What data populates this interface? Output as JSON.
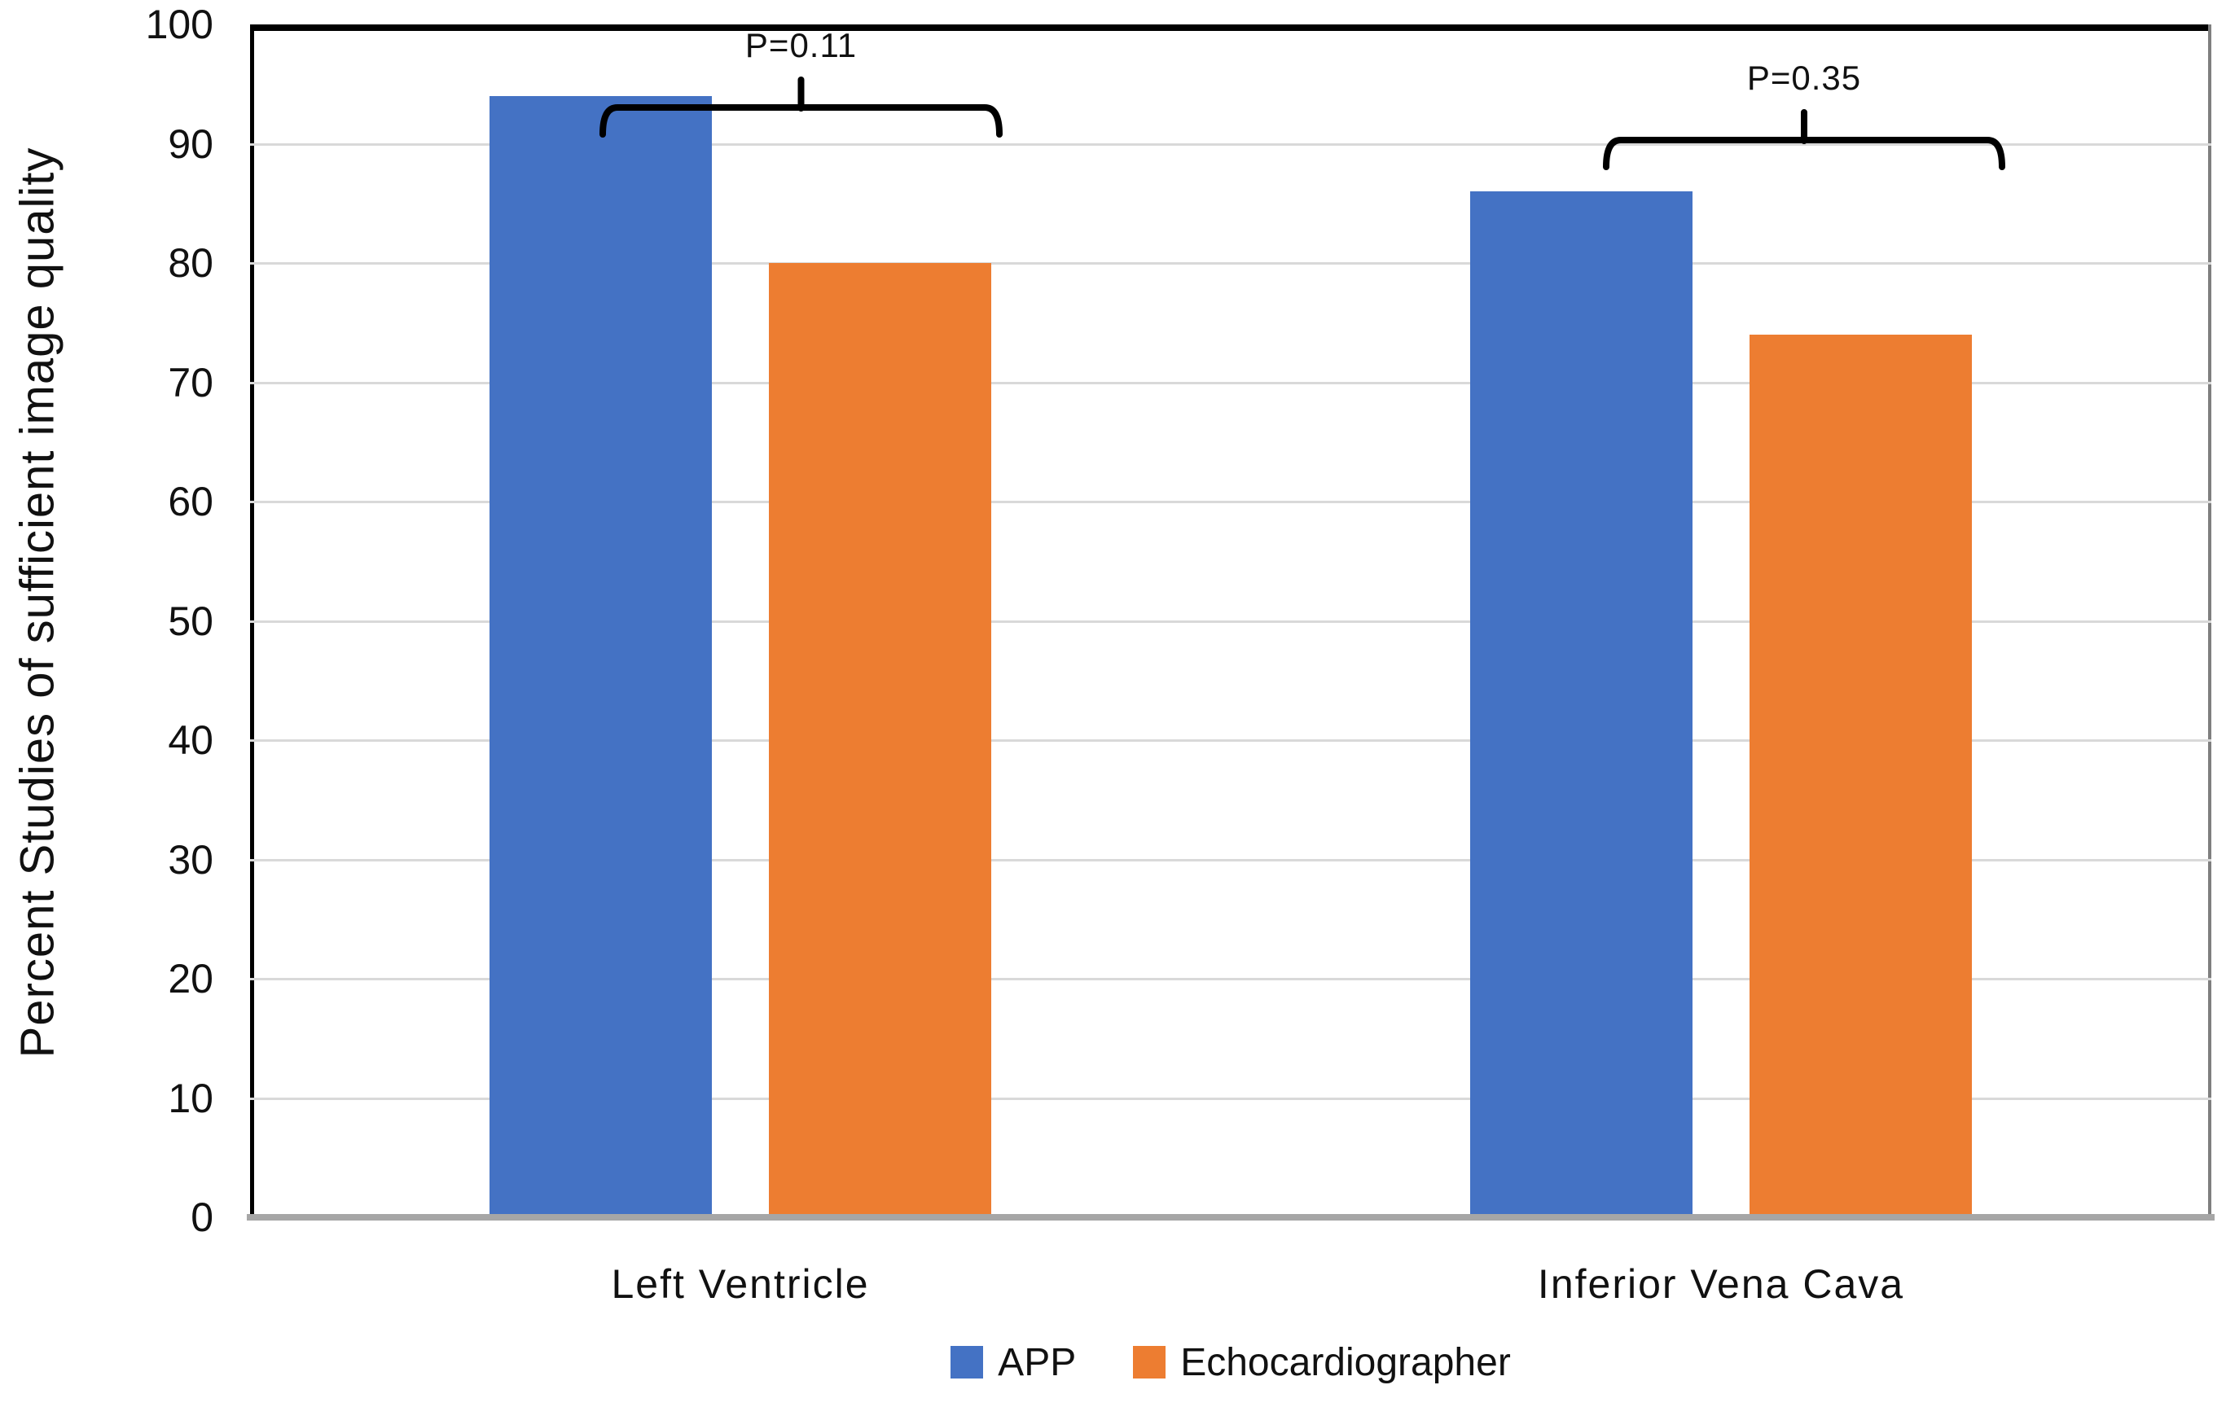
{
  "chart_data": {
    "type": "bar",
    "categories": [
      "Left Ventricle",
      "Inferior Vena Cava"
    ],
    "series": [
      {
        "name": "APP",
        "color": "#4472C4",
        "values": [
          94,
          86
        ]
      },
      {
        "name": "Echocardiographer",
        "color": "#ED7D31",
        "values": [
          80,
          74
        ]
      }
    ],
    "ylabel": "Percent Studies of sufficient image quality",
    "ylim": [
      0,
      100
    ],
    "yticks": [
      0,
      10,
      20,
      30,
      40,
      50,
      60,
      70,
      80,
      90,
      100
    ],
    "grid": true,
    "legend_position": "bottom",
    "annotations": [
      {
        "category": "Left Ventricle",
        "label": "P=0.11"
      },
      {
        "category": "Inferior Vena Cava",
        "label": "P=0.35"
      }
    ],
    "colors": {
      "gridline": "#D9D9D9",
      "baseline": "#A6A6A6",
      "border": "#000000",
      "text": "#111111"
    }
  }
}
